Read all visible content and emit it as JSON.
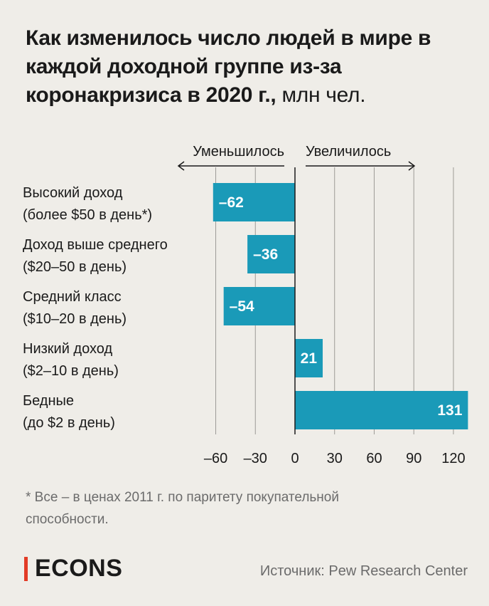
{
  "title": "Как изменилось число людей в мире в каждой доходной группе из-за коронакризиса в 2020 г.,",
  "title_unit": "млн чел.",
  "chart_data": {
    "type": "bar",
    "orientation": "horizontal",
    "categories": [
      [
        "Высокий доход",
        "(более $50 в день*)"
      ],
      [
        "Доход выше среднего",
        "($20–50 в день)"
      ],
      [
        "Средний класс",
        "($10–20 в день)"
      ],
      [
        "Низкий доход",
        "($2–10 в день)"
      ],
      [
        "Бедные",
        "(до $2 в день)"
      ]
    ],
    "values": [
      -62,
      -36,
      -54,
      21,
      131
    ],
    "value_labels": [
      "–62",
      "–36",
      "–54",
      "21",
      "131"
    ],
    "ticks": [
      -60,
      -30,
      0,
      30,
      60,
      90,
      120
    ],
    "tick_labels": [
      "–60",
      "–30",
      "0",
      "30",
      "60",
      "90",
      "120"
    ],
    "xlim": [
      -62,
      131
    ],
    "annotation_left": "Уменьшилось",
    "annotation_right": "Увеличилось",
    "bar_color": "#1a9ab8",
    "grid": true
  },
  "footnote": "* Все – в ценах 2011 г. по паритету покупательной способности.",
  "logo": "ECONS",
  "source": "Источник: Pew Research Center",
  "colors": {
    "background": "#efede8",
    "bar": "#1a9ab8",
    "logo_accent": "#e23b26"
  }
}
